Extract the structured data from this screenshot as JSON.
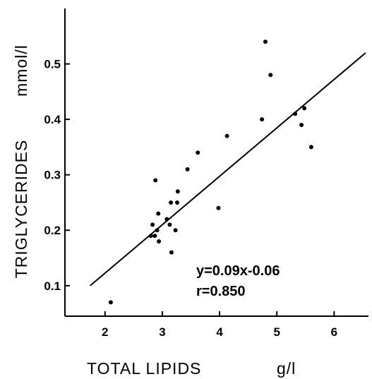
{
  "chart_data": {
    "type": "scatter",
    "xlabel": "TOTAL LIPIDS",
    "xunit": "g/l",
    "ylabel": "TRIGLYCERIDES",
    "yunit": "mmol/l",
    "xlim": [
      1.3,
      6.6
    ],
    "ylim": [
      0.045,
      0.6
    ],
    "xticks": [
      2,
      3,
      4,
      5,
      6
    ],
    "xtick_labels": [
      "2",
      "3",
      "4",
      "5",
      "6"
    ],
    "yticks": [
      0.1,
      0.2,
      0.3,
      0.4,
      0.5
    ],
    "ytick_labels": [
      "0.1",
      "0.2",
      "0.3",
      "0.4",
      "0.5"
    ],
    "grid": false,
    "points": [
      {
        "x": 2.1,
        "y": 0.07
      },
      {
        "x": 2.8,
        "y": 0.19
      },
      {
        "x": 2.83,
        "y": 0.21
      },
      {
        "x": 2.87,
        "y": 0.19
      },
      {
        "x": 2.88,
        "y": 0.29
      },
      {
        "x": 2.91,
        "y": 0.2
      },
      {
        "x": 2.93,
        "y": 0.23
      },
      {
        "x": 2.94,
        "y": 0.18
      },
      {
        "x": 3.08,
        "y": 0.22
      },
      {
        "x": 3.13,
        "y": 0.21
      },
      {
        "x": 3.15,
        "y": 0.25
      },
      {
        "x": 3.16,
        "y": 0.16
      },
      {
        "x": 3.23,
        "y": 0.2
      },
      {
        "x": 3.26,
        "y": 0.25
      },
      {
        "x": 3.27,
        "y": 0.27
      },
      {
        "x": 3.44,
        "y": 0.31
      },
      {
        "x": 3.62,
        "y": 0.34
      },
      {
        "x": 3.98,
        "y": 0.24
      },
      {
        "x": 4.13,
        "y": 0.37
      },
      {
        "x": 4.74,
        "y": 0.4
      },
      {
        "x": 4.8,
        "y": 0.54
      },
      {
        "x": 4.89,
        "y": 0.48
      },
      {
        "x": 5.32,
        "y": 0.41
      },
      {
        "x": 5.43,
        "y": 0.39
      },
      {
        "x": 5.48,
        "y": 0.42
      },
      {
        "x": 5.6,
        "y": 0.35
      }
    ],
    "fit_line": {
      "x": [
        1.74,
        6.55
      ],
      "y": [
        0.1,
        0.52
      ]
    },
    "annotations": [
      "y=0.09x-0.06",
      "r=0.850"
    ]
  }
}
